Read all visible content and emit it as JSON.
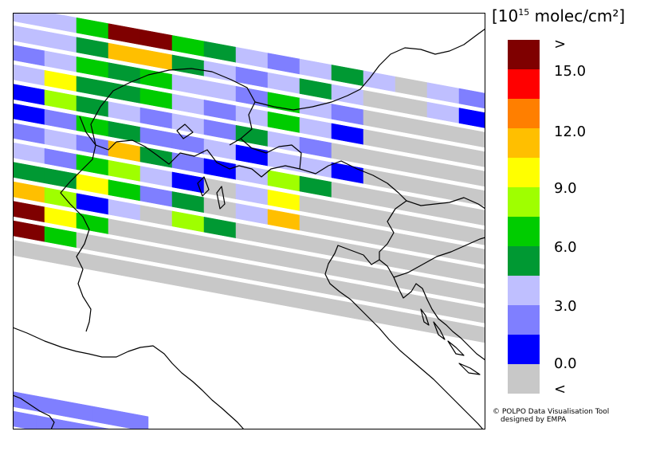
{
  "legend": {
    "unit_base": "[10",
    "unit_exp": "15",
    "unit_rest": " molec/cm²]",
    "over_label": ">",
    "under_label": "<",
    "tick_labels": [
      "15.0",
      "12.0",
      "9.0",
      "6.0",
      "3.0",
      "0.0"
    ],
    "colors": [
      "#7f0000",
      "#ff0000",
      "#ff7f00",
      "#ffbf00",
      "#ffff00",
      "#9fff00",
      "#00cc00",
      "#009933",
      "#bfbfff",
      "#7f7fff",
      "#0000ff",
      "#c8c8c8"
    ]
  },
  "credits": {
    "line1": "© POLPO Data Visualisation Tool",
    "line2": "designed by EMPA"
  },
  "map": {
    "no_data_color": "#c8c8c8",
    "swaths": [
      [
        "#009933",
        "#bfbfff",
        "#bfbfff",
        "#00cc00",
        "#7f0000",
        "#7f0000",
        "#00cc00",
        "#009933",
        "#bfbfff",
        "#7f7fff",
        "#bfbfff",
        "#009933",
        "#bfbfff",
        "#c8c8c8",
        "#bfbfff",
        "#7f7fff"
      ],
      [
        "#9fff00",
        "#bfbfff",
        "#bfbfff",
        "#009933",
        "#ffbf00",
        "#ffbf00",
        "#009933",
        "#bfbfff",
        "#7f7fff",
        "#bfbfff",
        "#009933",
        "#bfbfff",
        "#c8c8c8",
        "#c8c8c8",
        "#bfbfff",
        "#0000ff"
      ],
      [
        "#009933",
        "#7f7fff",
        "#bfbfff",
        "#00cc00",
        "#009933",
        "#00cc00",
        "#bfbfff",
        "#bfbfff",
        "#7f7fff",
        "#00cc00",
        "#bfbfff",
        "#7f7fff",
        "#c8c8c8",
        "#c8c8c8",
        "#c8c8c8",
        "#c8c8c8"
      ],
      [
        "#7f7fff",
        "#bfbfff",
        "#ffff00",
        "#009933",
        "#009933",
        "#00cc00",
        "#bfbfff",
        "#7f7fff",
        "#bfbfff",
        "#00cc00",
        "#bfbfff",
        "#0000ff",
        "#c8c8c8",
        "#c8c8c8",
        "#c8c8c8",
        "#c8c8c8"
      ],
      [
        "#bfbfff",
        "#0000ff",
        "#9fff00",
        "#009933",
        "#bfbfff",
        "#7f7fff",
        "#bfbfff",
        "#7f7fff",
        "#009933",
        "#bfbfff",
        "#7f7fff",
        "#c8c8c8",
        "#c8c8c8",
        "#c8c8c8",
        "#c8c8c8",
        "#c8c8c8"
      ],
      [
        "#00cc00",
        "#0000ff",
        "#7f7fff",
        "#00cc00",
        "#009933",
        "#7f7fff",
        "#7f7fff",
        "#bfbfff",
        "#0000ff",
        "#bfbfff",
        "#bfbfff",
        "#0000ff",
        "#c8c8c8",
        "#c8c8c8",
        "#c8c8c8",
        "#c8c8c8"
      ],
      [
        "#bfbfff",
        "#7f7fff",
        "#bfbfff",
        "#7f7fff",
        "#ffbf00",
        "#009933",
        "#7f7fff",
        "#0000ff",
        "#bfbfff",
        "#9fff00",
        "#009933",
        "#c8c8c8",
        "#c8c8c8",
        "#c8c8c8",
        "#c8c8c8",
        "#c8c8c8"
      ],
      [
        "#009933",
        "#bfbfff",
        "#7f7fff",
        "#00cc00",
        "#9fff00",
        "#bfbfff",
        "#0000ff",
        "#c8c8c8",
        "#bfbfff",
        "#ffff00",
        "#c8c8c8",
        "#c8c8c8",
        "#c8c8c8",
        "#c8c8c8",
        "#c8c8c8",
        "#c8c8c8"
      ],
      [
        "#009933",
        "#009933",
        "#009933",
        "#ffff00",
        "#00cc00",
        "#7f7fff",
        "#009933",
        "#c8c8c8",
        "#bfbfff",
        "#ffbf00",
        "#c8c8c8",
        "#c8c8c8",
        "#c8c8c8",
        "#c8c8c8",
        "#c8c8c8",
        "#c8c8c8"
      ],
      [
        "#ff0000",
        "#ffbf00",
        "#9fff00",
        "#0000ff",
        "#bfbfff",
        "#c8c8c8",
        "#9fff00",
        "#009933",
        "#c8c8c8",
        "#c8c8c8",
        "#c8c8c8",
        "#c8c8c8",
        "#c8c8c8",
        "#c8c8c8",
        "#c8c8c8",
        "#c8c8c8"
      ],
      [
        "#00cc00",
        "#7f0000",
        "#ffff00",
        "#00cc00",
        "#c8c8c8",
        "#c8c8c8",
        "#c8c8c8",
        "#c8c8c8",
        "#c8c8c8",
        "#c8c8c8",
        "#c8c8c8",
        "#c8c8c8",
        "#c8c8c8",
        "#c8c8c8",
        "#c8c8c8",
        "#c8c8c8"
      ],
      [
        "#00cc00",
        "#7f0000",
        "#00cc00",
        "#c8c8c8",
        "#c8c8c8",
        "#c8c8c8",
        "#c8c8c8",
        "#c8c8c8",
        "#c8c8c8",
        "#c8c8c8",
        "#c8c8c8",
        "#c8c8c8",
        "#c8c8c8",
        "#c8c8c8",
        "#c8c8c8",
        "#c8c8c8"
      ],
      [
        "#c8c8c8",
        "#c8c8c8",
        "#c8c8c8",
        "#c8c8c8",
        "#c8c8c8",
        "#c8c8c8",
        "#c8c8c8",
        "#c8c8c8",
        "#c8c8c8",
        "#c8c8c8",
        "#c8c8c8",
        "#c8c8c8",
        "#c8c8c8",
        "#c8c8c8",
        "#c8c8c8",
        "#c8c8c8"
      ]
    ],
    "lower_swaths": [
      [
        "#7f7fff",
        "#7f7fff",
        "#7f7fff"
      ],
      [
        "#7f7fff",
        "#7f7fff",
        "#7f7fff"
      ]
    ]
  }
}
